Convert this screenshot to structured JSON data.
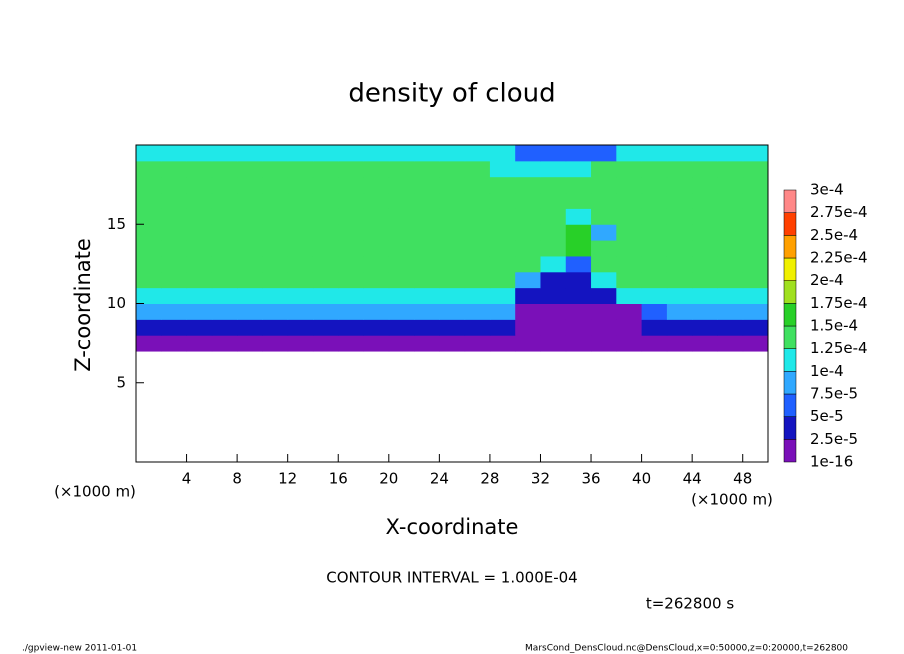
{
  "chart_data": {
    "type": "contour",
    "title": "density of cloud",
    "x_label": "X-coordinate",
    "y_label": "Z-coordinate",
    "x_unit": "(×1000 m)",
    "x_unit_right": "(×1000 m)",
    "annotation": "CONTOUR INTERVAL = 1.000E-04",
    "time_label": "t=262800 s",
    "footer_left": "./gpview-new   2011-01-01",
    "footer_right": "MarsCond_DensCloud.nc@DensCloud,x=0:50000,z=0:20000,t=262800",
    "xlim": [
      0,
      50
    ],
    "xticks": [
      4,
      8,
      12,
      16,
      20,
      24,
      28,
      32,
      36,
      40,
      44,
      48
    ],
    "ylim": [
      0,
      20
    ],
    "yticks": [
      5,
      10,
      15
    ],
    "x_edges": [
      0,
      2,
      4,
      6,
      8,
      10,
      12,
      14,
      16,
      18,
      20,
      22,
      24,
      26,
      28,
      30,
      32,
      34,
      36,
      38,
      40,
      42,
      44,
      46,
      48,
      50
    ],
    "y_edges": [
      7,
      8,
      9,
      10,
      11,
      12,
      13,
      14,
      15,
      16,
      17,
      18,
      19,
      20
    ],
    "values": [
      [
        1.5e-05,
        1.5e-05,
        1.5e-05,
        1.5e-05,
        1.5e-05,
        1.5e-05,
        1.5e-05,
        1.5e-05,
        1.5e-05,
        1.5e-05,
        1.5e-05,
        1.5e-05,
        1.5e-05,
        1.5e-05,
        1.5e-05,
        5e-06,
        5e-06,
        5e-06,
        5e-06,
        5e-06,
        1.5e-05,
        1.5e-05,
        1.5e-05,
        1.5e-05,
        1.5e-05
      ],
      [
        4e-05,
        4e-05,
        4e-05,
        4e-05,
        4e-05,
        4e-05,
        4e-05,
        4e-05,
        4e-05,
        4e-05,
        4e-05,
        4e-05,
        4e-05,
        4e-05,
        4e-05,
        2e-05,
        2e-05,
        2e-05,
        2e-05,
        2e-05,
        4e-05,
        4e-05,
        4e-05,
        4e-05,
        4e-05
      ],
      [
        8e-05,
        8e-05,
        8e-05,
        8e-05,
        8e-05,
        8e-05,
        8e-05,
        8e-05,
        8e-05,
        8e-05,
        8e-05,
        8e-05,
        8e-05,
        8e-05,
        8e-05,
        1.5e-05,
        1.5e-05,
        1.5e-05,
        1.5e-05,
        1.5e-05,
        6e-05,
        8e-05,
        8e-05,
        8e-05,
        8e-05
      ],
      [
        0.00012,
        0.00012,
        0.00012,
        0.00012,
        0.00012,
        0.00012,
        0.00012,
        0.00012,
        0.00012,
        0.00012,
        0.00012,
        0.00012,
        0.00012,
        0.00012,
        0.00012,
        3e-05,
        3e-05,
        3e-05,
        3e-05,
        0.0001,
        0.00012,
        0.00012,
        0.00012,
        0.00012,
        0.00012
      ],
      [
        0.000135,
        0.000135,
        0.000135,
        0.000135,
        0.000135,
        0.000135,
        0.000135,
        0.000135,
        0.000135,
        0.000135,
        0.000135,
        0.000135,
        0.000135,
        0.000135,
        0.000135,
        9e-05,
        4e-05,
        4e-05,
        0.0001,
        0.000135,
        0.000135,
        0.000135,
        0.000135,
        0.000135,
        0.000135
      ],
      [
        0.00014,
        0.00014,
        0.00014,
        0.00014,
        0.00014,
        0.00014,
        0.00014,
        0.00014,
        0.00014,
        0.00014,
        0.00014,
        0.00014,
        0.00014,
        0.00014,
        0.00014,
        0.00014,
        0.00012,
        6e-05,
        0.00014,
        0.00014,
        0.00014,
        0.00014,
        0.00014,
        0.00014,
        0.00014
      ],
      [
        0.00014,
        0.00014,
        0.00014,
        0.00014,
        0.00014,
        0.00014,
        0.00014,
        0.00014,
        0.00014,
        0.00014,
        0.00014,
        0.00014,
        0.00014,
        0.00014,
        0.00014,
        0.00014,
        0.00014,
        0.00016,
        0.00014,
        0.00014,
        0.00014,
        0.00014,
        0.00014,
        0.00014,
        0.00014
      ],
      [
        0.00014,
        0.00014,
        0.00014,
        0.00014,
        0.00014,
        0.00014,
        0.00014,
        0.00014,
        0.00014,
        0.00014,
        0.00014,
        0.00014,
        0.00014,
        0.00014,
        0.00014,
        0.00014,
        0.00014,
        0.000155,
        9e-05,
        0.00014,
        0.00014,
        0.00014,
        0.00014,
        0.00014,
        0.00014
      ],
      [
        0.00014,
        0.00014,
        0.00014,
        0.00014,
        0.00014,
        0.00014,
        0.00014,
        0.00014,
        0.00014,
        0.00014,
        0.00014,
        0.00014,
        0.00014,
        0.00014,
        0.00014,
        0.00014,
        0.00014,
        0.00011,
        0.00014,
        0.00014,
        0.00014,
        0.00014,
        0.00014,
        0.00014,
        0.00014
      ],
      [
        0.00014,
        0.00014,
        0.00014,
        0.00014,
        0.00014,
        0.00014,
        0.00014,
        0.00014,
        0.00014,
        0.00014,
        0.00014,
        0.00014,
        0.00014,
        0.00014,
        0.00014,
        0.00014,
        0.00014,
        0.00014,
        0.00014,
        0.00014,
        0.00014,
        0.00014,
        0.00014,
        0.00014,
        0.00014
      ],
      [
        0.00014,
        0.00014,
        0.00014,
        0.00014,
        0.00014,
        0.00014,
        0.00014,
        0.00014,
        0.00014,
        0.00014,
        0.00014,
        0.00014,
        0.00014,
        0.00014,
        0.00014,
        0.00014,
        0.00014,
        0.00014,
        0.00014,
        0.00014,
        0.00014,
        0.00014,
        0.00014,
        0.00014,
        0.00014
      ],
      [
        0.00013,
        0.00013,
        0.00013,
        0.00013,
        0.00013,
        0.00013,
        0.00013,
        0.00013,
        0.00013,
        0.00013,
        0.00013,
        0.00013,
        0.00013,
        0.00013,
        0.0001,
        0.0001,
        0.0001,
        0.0001,
        0.00013,
        0.00013,
        0.00013,
        0.00013,
        0.00013,
        0.00013,
        0.00013
      ],
      [
        0.000115,
        0.000115,
        0.000115,
        0.000115,
        0.000115,
        0.000115,
        0.000115,
        0.000115,
        0.000115,
        0.000115,
        0.000115,
        0.000115,
        0.000115,
        0.000115,
        0.000115,
        7e-05,
        7e-05,
        7e-05,
        7e-05,
        0.000115,
        0.000115,
        0.000115,
        0.000115,
        0.000115,
        0.000115
      ]
    ],
    "levels": [
      {
        "value": 1e-16,
        "label": "1e-16"
      },
      {
        "value": 2.5e-05,
        "label": "2.5e-5"
      },
      {
        "value": 5e-05,
        "label": "5e-5"
      },
      {
        "value": 7.5e-05,
        "label": "7.5e-5"
      },
      {
        "value": 0.0001,
        "label": "1e-4"
      },
      {
        "value": 0.000125,
        "label": "1.25e-4"
      },
      {
        "value": 0.00015,
        "label": "1.5e-4"
      },
      {
        "value": 0.000175,
        "label": "1.75e-4"
      },
      {
        "value": 0.0002,
        "label": "2e-4"
      },
      {
        "value": 0.000225,
        "label": "2.25e-4"
      },
      {
        "value": 0.00025,
        "label": "2.5e-4"
      },
      {
        "value": 0.000275,
        "label": "2.75e-4"
      },
      {
        "value": 0.0003,
        "label": "3e-4"
      }
    ],
    "colors": [
      "#7a10b8",
      "#1414c0",
      "#2060ff",
      "#30a8ff",
      "#20e8e8",
      "#40e060",
      "#28d028",
      "#a0e020",
      "#f0f000",
      "#ffa000",
      "#ff4000",
      "#ff8888"
    ]
  }
}
